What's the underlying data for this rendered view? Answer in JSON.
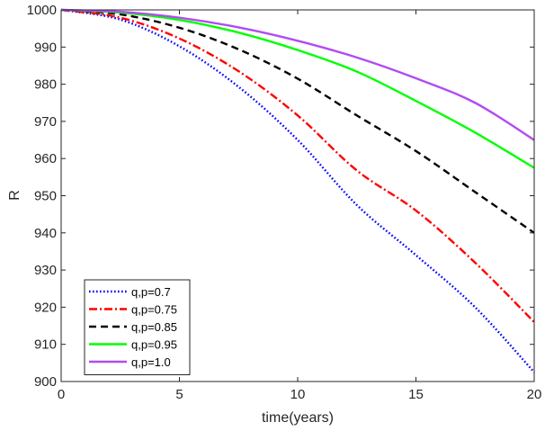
{
  "chart_data": {
    "type": "line",
    "title": "",
    "xlabel": "time(years)",
    "ylabel": "R",
    "xlim": [
      0,
      20
    ],
    "ylim": [
      900,
      1000
    ],
    "xticks": [
      0,
      5,
      10,
      15,
      20
    ],
    "yticks": [
      900,
      910,
      920,
      930,
      940,
      950,
      960,
      970,
      980,
      990,
      1000
    ],
    "grid": false,
    "legend_position": "bottom-left",
    "x": [
      0,
      2.5,
      5,
      7.5,
      10,
      12.5,
      15,
      17.5,
      20
    ],
    "series": [
      {
        "name": "q,p=0.7",
        "color": "#0000ff",
        "dash": "dotted",
        "values": [
          1000,
          997.4,
          990.2,
          979.3,
          965.0,
          947.5,
          934.0,
          920.0,
          902.5
        ]
      },
      {
        "name": "q,p=0.75",
        "color": "#ff0000",
        "dash": "dash-dot",
        "values": [
          1000,
          997.9,
          992.3,
          983.5,
          971.6,
          956.8,
          946.0,
          932.0,
          916.0
        ]
      },
      {
        "name": "q,p=0.85",
        "color": "#000000",
        "dash": "dashed",
        "values": [
          1000,
          998.8,
          995.2,
          989.4,
          981.5,
          971.6,
          962.0,
          951.0,
          940.0
        ]
      },
      {
        "name": "q,p=0.95",
        "color": "#00ff00",
        "dash": "solid",
        "values": [
          1000,
          999.3,
          997.3,
          993.9,
          989.2,
          983.4,
          975.5,
          967.0,
          957.5
        ]
      },
      {
        "name": "q,p=1.0",
        "color": "#b24bf0",
        "dash": "solid",
        "values": [
          1000,
          999.5,
          997.9,
          995.3,
          991.7,
          987.2,
          981.6,
          975.0,
          965.0
        ]
      }
    ]
  }
}
